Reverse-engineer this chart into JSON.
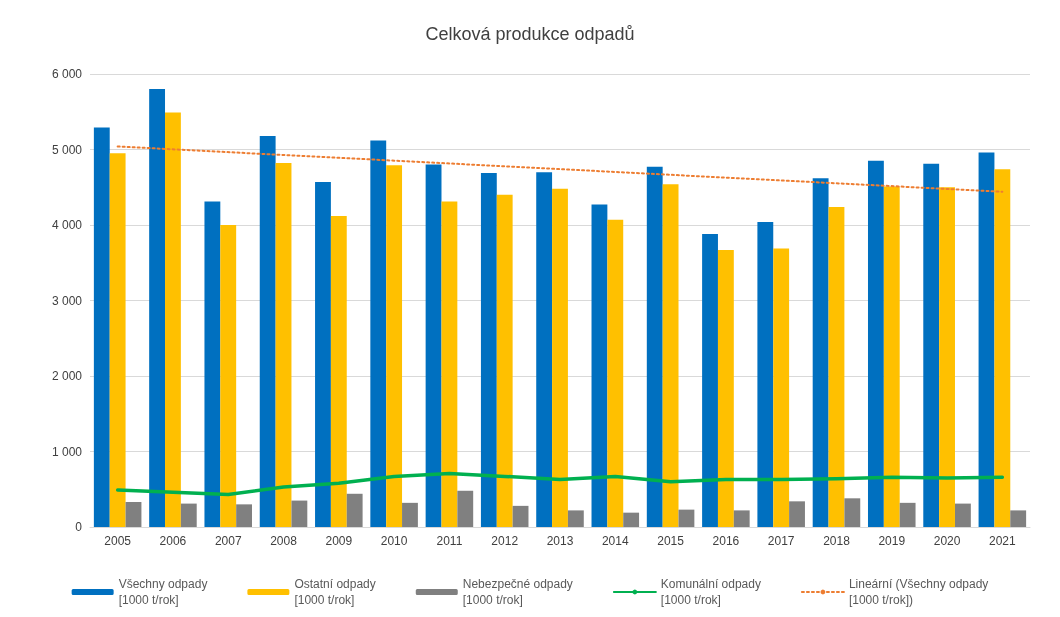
{
  "chart_data": {
    "type": "bar",
    "title": "Celková produkce odpadů",
    "categories": [
      "2005",
      "2006",
      "2007",
      "2008",
      "2009",
      "2010",
      "2011",
      "2012",
      "2013",
      "2014",
      "2015",
      "2016",
      "2017",
      "2018",
      "2019",
      "2020",
      "2021"
    ],
    "series": [
      {
        "name": "Všechny odpady\n[1000 t/rok]",
        "color": "#0070c0",
        "values": [
          5290,
          5800,
          4310,
          5180,
          4570,
          5120,
          4800,
          4690,
          4700,
          4270,
          4770,
          3880,
          4040,
          4620,
          4850,
          4810,
          4960
        ]
      },
      {
        "name": "Ostatní odpady\n[1000 t/rok]",
        "color": "#ffc000",
        "values": [
          4950,
          5490,
          4000,
          4820,
          4120,
          4790,
          4310,
          4400,
          4480,
          4070,
          4540,
          3670,
          3690,
          4240,
          4510,
          4500,
          4740
        ]
      },
      {
        "name": "Nebezpečné odpady\n[1000 t/rok]",
        "color": "#808080",
        "values": [
          330,
          310,
          300,
          350,
          440,
          320,
          480,
          280,
          220,
          190,
          230,
          220,
          340,
          380,
          320,
          310,
          220
        ]
      },
      {
        "name": "Komunální odpady\n[1000 t/rok]",
        "type": "line",
        "color": "#00b050",
        "marker": "none",
        "line_style": "solid",
        "values": [
          490,
          460,
          430,
          530,
          580,
          670,
          710,
          670,
          630,
          670,
          600,
          630,
          630,
          640,
          660,
          650,
          660
        ]
      },
      {
        "name": "Lineární (Všechny odpady\n[1000 t/rok])",
        "type": "line",
        "color": "#ed7d31",
        "marker": "none",
        "line_style": "dotted",
        "values": [
          5040,
          null,
          null,
          null,
          null,
          null,
          null,
          null,
          null,
          null,
          null,
          null,
          null,
          null,
          null,
          null,
          4440
        ]
      }
    ],
    "ylim": [
      0,
      6000
    ],
    "yticks": [
      {
        "value": 0,
        "label": "0"
      },
      {
        "value": 1000,
        "label": "1 000"
      },
      {
        "value": 2000,
        "label": "2 000"
      },
      {
        "value": 3000,
        "label": "3 000"
      },
      {
        "value": 4000,
        "label": "4 000"
      },
      {
        "value": 5000,
        "label": "5 000"
      },
      {
        "value": 6000,
        "label": "6 000"
      }
    ],
    "grid": "y",
    "legend": "bottom"
  }
}
